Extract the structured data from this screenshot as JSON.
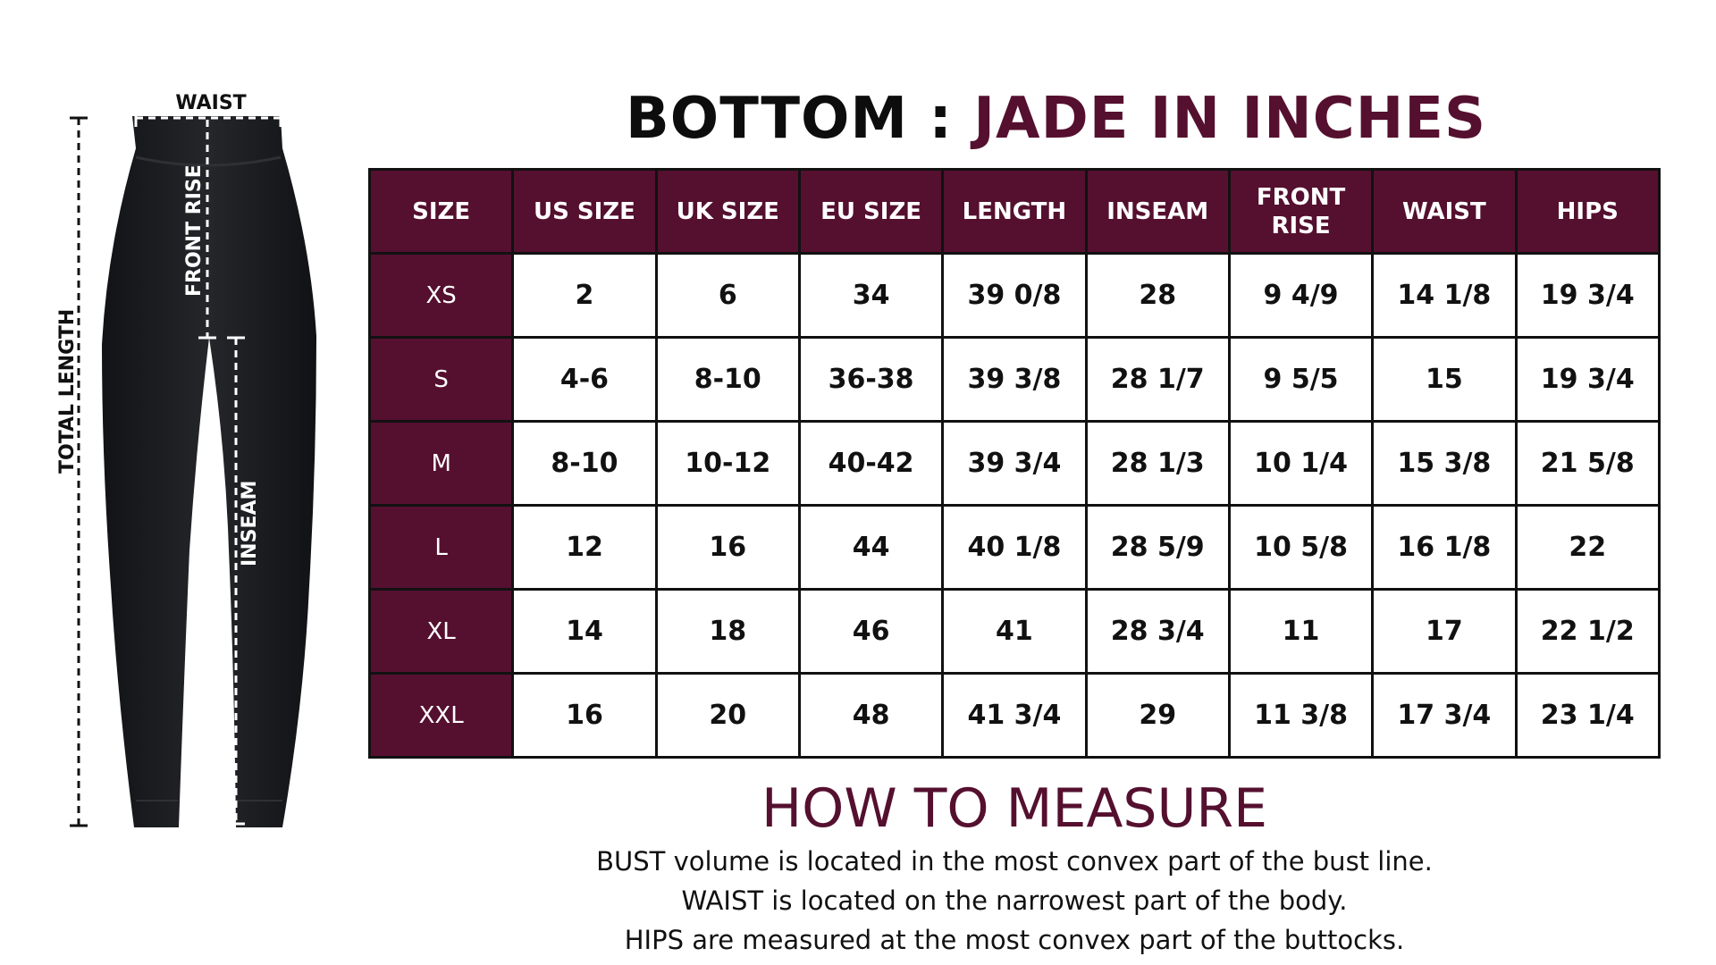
{
  "title": {
    "part1": "BOTTOM :",
    "part2": "JADE IN INCHES"
  },
  "figure": {
    "waist_label": "WAIST",
    "front_rise_label": "FRONT RISE",
    "total_length_label": "TOTAL LENGTH",
    "inseam_label": "INSEAM"
  },
  "table": {
    "headers": [
      "SIZE",
      "US SIZE",
      "UK SIZE",
      "EU SIZE",
      "LENGTH",
      "INSEAM",
      "FRONT RISE",
      "WAIST",
      "HIPS"
    ],
    "rows": [
      [
        "XS",
        "2",
        "6",
        "34",
        "39 0/8",
        "28",
        "9 4/9",
        "14 1/8",
        "19 3/4"
      ],
      [
        "S",
        "4-6",
        "8-10",
        "36-38",
        "39 3/8",
        "28 1/7",
        "9 5/5",
        "15",
        "19 3/4"
      ],
      [
        "M",
        "8-10",
        "10-12",
        "40-42",
        "39 3/4",
        "28 1/3",
        "10 1/4",
        "15 3/8",
        "21 5/8"
      ],
      [
        "L",
        "12",
        "16",
        "44",
        "40 1/8",
        "28 5/9",
        "10 5/8",
        "16 1/8",
        "22"
      ],
      [
        "XL",
        "14",
        "18",
        "46",
        "41",
        "28 3/4",
        "11",
        "17",
        "22 1/2"
      ],
      [
        "XXL",
        "16",
        "20",
        "48",
        "41 3/4",
        "29",
        "11 3/8",
        "17 3/4",
        "23 1/4"
      ]
    ]
  },
  "how_to_measure": {
    "heading": "HOW TO MEASURE",
    "lines": [
      "BUST volume is located in the most convex part of the bust line.",
      "WAIST is located on the narrowest part of the body.",
      "HIPS are measured at the most convex part of the buttocks."
    ]
  },
  "colors": {
    "accent": "#55102f",
    "text": "#111111",
    "garment": "#1b1c1f"
  }
}
